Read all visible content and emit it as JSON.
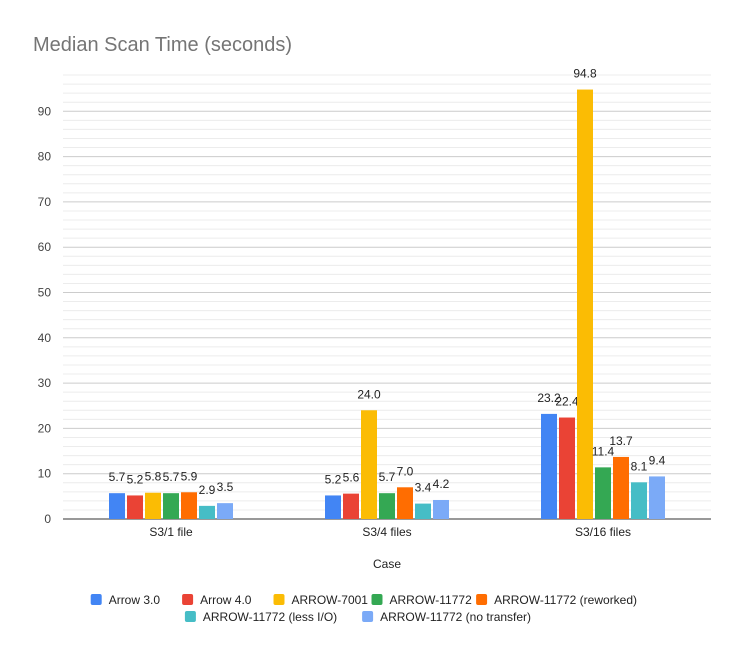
{
  "chart_data": {
    "type": "bar",
    "title": "Median Scan Time (seconds)",
    "xlabel": "Case",
    "ylabel": "",
    "categories": [
      "S3/1 file",
      "S3/4 files",
      "S3/16 files"
    ],
    "ylim": [
      0,
      100
    ],
    "yticks": [
      0,
      10,
      20,
      30,
      40,
      50,
      60,
      70,
      80,
      90
    ],
    "grid": true,
    "legend_position": "bottom",
    "series": [
      {
        "name": "Arrow 3.0",
        "color": "#4285F4",
        "values": [
          5.7,
          5.2,
          23.2
        ],
        "labels": [
          "5.7",
          "5.2",
          "23.2"
        ]
      },
      {
        "name": "Arrow 4.0",
        "color": "#EA4335",
        "values": [
          5.2,
          5.6,
          22.4
        ],
        "labels": [
          "5.2",
          "5.6",
          "22.4"
        ]
      },
      {
        "name": "ARROW-7001",
        "color": "#FBBC04",
        "values": [
          5.8,
          24.0,
          94.8
        ],
        "labels": [
          "5.8",
          "24.0",
          "94.8"
        ]
      },
      {
        "name": "ARROW-11772",
        "color": "#34A853",
        "values": [
          5.7,
          5.7,
          11.4
        ],
        "labels": [
          "5.7",
          "5.7",
          "11.4"
        ]
      },
      {
        "name": "ARROW-11772 (reworked)",
        "color": "#FF6D01",
        "values": [
          5.9,
          7.0,
          13.7
        ],
        "labels": [
          "5.9",
          "7.0",
          "13.7"
        ]
      },
      {
        "name": "ARROW-11772 (less I/O)",
        "color": "#46BDC6",
        "values": [
          2.9,
          3.4,
          8.1
        ],
        "labels": [
          "2.9",
          "3.4",
          "8.1"
        ]
      },
      {
        "name": "ARROW-11772 (no transfer)",
        "color": "#7BAAF7",
        "values": [
          3.5,
          4.2,
          9.4
        ],
        "labels": [
          "3.5",
          "4.2",
          "9.4"
        ]
      }
    ]
  }
}
